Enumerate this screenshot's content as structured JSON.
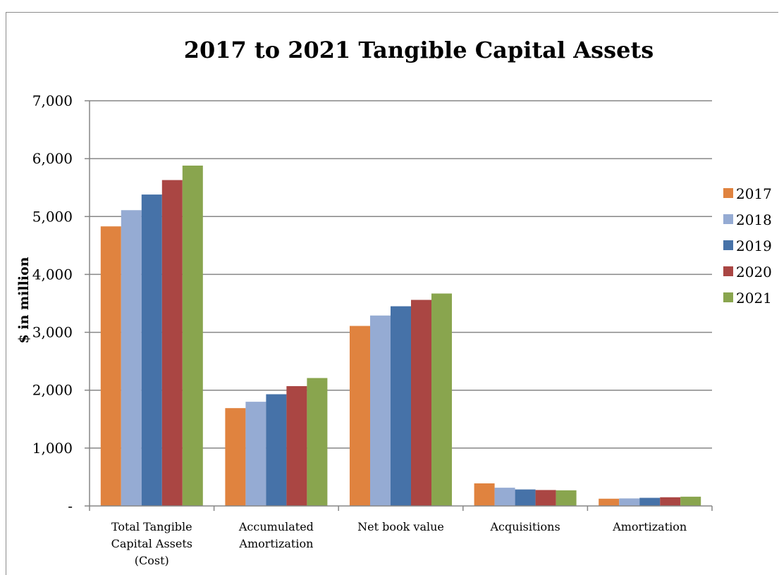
{
  "chart_data": {
    "type": "bar",
    "title": "2017 to 2021 Tangible Capital Assets",
    "ylabel": "$ in million",
    "xlabel": "",
    "ylim": [
      0,
      7000
    ],
    "yticks": [
      {
        "value": 0,
        "label": "-"
      },
      {
        "value": 1000,
        "label": "1,000"
      },
      {
        "value": 2000,
        "label": "2,000"
      },
      {
        "value": 3000,
        "label": "3,000"
      },
      {
        "value": 4000,
        "label": "4,000"
      },
      {
        "value": 5000,
        "label": "5,000"
      },
      {
        "value": 6000,
        "label": "6,000"
      },
      {
        "value": 7000,
        "label": "7,000"
      }
    ],
    "grid": true,
    "legend_position": "right",
    "categories": [
      [
        "Total Tangible",
        "Capital Assets",
        "(Cost)"
      ],
      [
        "Accumulated",
        "Amortization"
      ],
      [
        "Net book value"
      ],
      [
        "Acquisitions"
      ],
      [
        "Amortization"
      ]
    ],
    "series": [
      {
        "name": "2017",
        "color": "#e0833f",
        "values": [
          4830,
          1690,
          3110,
          390,
          125
        ]
      },
      {
        "name": "2018",
        "color": "#95abd3",
        "values": [
          5110,
          1800,
          3290,
          315,
          130
        ]
      },
      {
        "name": "2019",
        "color": "#4672a8",
        "values": [
          5380,
          1930,
          3450,
          285,
          140
        ]
      },
      {
        "name": "2020",
        "color": "#aa4643",
        "values": [
          5630,
          2070,
          3560,
          275,
          150
        ]
      },
      {
        "name": "2021",
        "color": "#89a54e",
        "values": [
          5880,
          2210,
          3670,
          270,
          160
        ]
      }
    ]
  }
}
